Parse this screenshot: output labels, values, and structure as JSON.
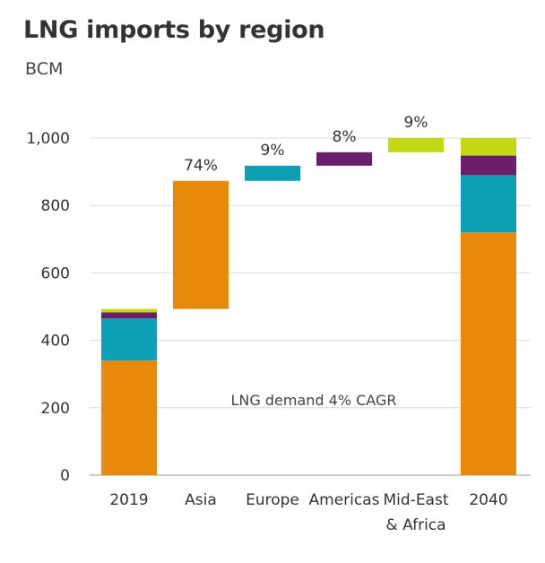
{
  "chart_data": {
    "type": "bar",
    "subtype": "waterfall",
    "title": "LNG imports by region",
    "ylabel": "BCM",
    "ylim": [
      0,
      1000
    ],
    "yticks": [
      "0",
      "200",
      "400",
      "600",
      "800",
      "1,000"
    ],
    "grid": true,
    "categories": [
      "2019",
      "Asia",
      "Europe",
      "Americas",
      "Mid-East\n& Africa",
      "2040"
    ],
    "colors": {
      "Asia": "#e8890c",
      "Europe": "#0d9fb3",
      "Americas": "#6b1f6b",
      "Mid-East & Africa": "#c3d715"
    },
    "stacked_2019": [
      {
        "region": "Asia",
        "value": 340
      },
      {
        "region": "Europe",
        "value": 125
      },
      {
        "region": "Americas",
        "value": 18
      },
      {
        "region": "Mid-East & Africa",
        "value": 10
      }
    ],
    "increments": [
      {
        "category": "Asia",
        "region": "Asia",
        "start": 493,
        "end": 873,
        "pct": "74%"
      },
      {
        "category": "Europe",
        "region": "Europe",
        "start": 873,
        "end": 918,
        "pct": "9%"
      },
      {
        "category": "Americas",
        "region": "Americas",
        "start": 918,
        "end": 958,
        "pct": "8%"
      },
      {
        "category": "Mid-East\n& Africa",
        "region": "Mid-East & Africa",
        "start": 958,
        "end": 1000,
        "pct": "9%"
      }
    ],
    "stacked_2040": [
      {
        "region": "Asia",
        "value": 720
      },
      {
        "region": "Europe",
        "value": 170
      },
      {
        "region": "Americas",
        "value": 58
      },
      {
        "region": "Mid-East & Africa",
        "value": 52
      }
    ],
    "annotation": "LNG demand 4% CAGR"
  }
}
